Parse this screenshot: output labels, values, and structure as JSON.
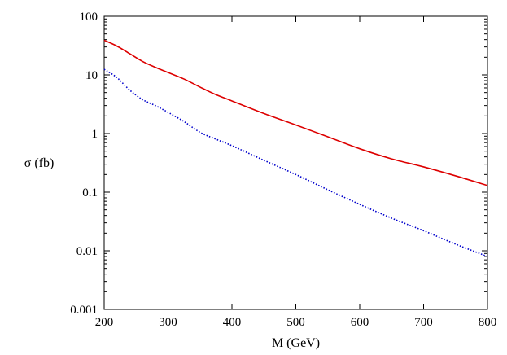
{
  "chart_data": {
    "type": "line",
    "title": "",
    "xlabel": "M (GeV)",
    "ylabel": "σ (fb)",
    "xlim": [
      200,
      800
    ],
    "ylim": [
      0.001,
      100
    ],
    "yscale": "log",
    "x_ticks": [
      "200",
      "300",
      "400",
      "500",
      "600",
      "700",
      "800"
    ],
    "y_ticks": [
      "0.001",
      "0.01",
      "0.1",
      "1",
      "10",
      "100"
    ],
    "grid": false,
    "legend": "none",
    "series": [
      {
        "style": "solid",
        "color": "#dd0000",
        "x": [
          200,
          220,
          240,
          260,
          280,
          300,
          325,
          350,
          375,
          400,
          450,
          500,
          550,
          600,
          650,
          700,
          750,
          800
        ],
        "y": [
          39,
          31,
          23,
          17,
          13.5,
          11,
          8.5,
          6.2,
          4.6,
          3.6,
          2.2,
          1.4,
          0.88,
          0.55,
          0.37,
          0.27,
          0.19,
          0.13
        ]
      },
      {
        "style": "dotted",
        "color": "#0000cc",
        "x": [
          200,
          220,
          240,
          260,
          280,
          300,
          325,
          350,
          375,
          400,
          450,
          500,
          550,
          600,
          650,
          700,
          750,
          800
        ],
        "y": [
          12.5,
          9,
          5.5,
          3.8,
          3.0,
          2.3,
          1.6,
          1.05,
          0.8,
          0.62,
          0.35,
          0.2,
          0.11,
          0.062,
          0.036,
          0.022,
          0.013,
          0.008
        ]
      }
    ]
  }
}
